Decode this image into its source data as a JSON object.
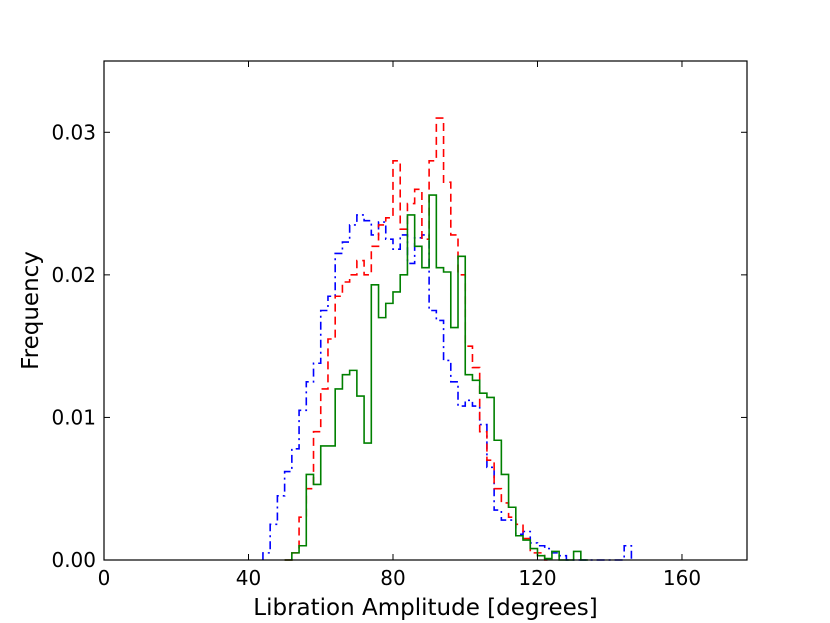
{
  "chart_data": {
    "type": "step",
    "title": "",
    "xlabel": "Libration Amplitude [degrees]",
    "ylabel": "Frequency",
    "xlim": [
      0,
      178
    ],
    "ylim": [
      0,
      0.035
    ],
    "xticks": [
      0,
      40,
      80,
      120,
      160
    ],
    "yticks": [
      0.0,
      0.01,
      0.02,
      0.03
    ],
    "xtick_labels": [
      "0",
      "40",
      "80",
      "120",
      "160"
    ],
    "ytick_labels": [
      "0.00",
      "0.01",
      "0.02",
      "0.03"
    ],
    "grid": false,
    "bin_width": 2,
    "series": [
      {
        "color": "#0000ff",
        "style": "dashdot",
        "bins": [
          [
            44,
            0.0005
          ],
          [
            46,
            0.0025
          ],
          [
            48,
            0.0045
          ],
          [
            50,
            0.0062
          ],
          [
            52,
            0.0078
          ],
          [
            54,
            0.0105
          ],
          [
            56,
            0.0125
          ],
          [
            58,
            0.0138
          ],
          [
            60,
            0.0175
          ],
          [
            62,
            0.0185
          ],
          [
            64,
            0.0215
          ],
          [
            66,
            0.0223
          ],
          [
            68,
            0.0235
          ],
          [
            70,
            0.0242
          ],
          [
            72,
            0.0238
          ],
          [
            74,
            0.0228
          ],
          [
            76,
            0.0237
          ],
          [
            78,
            0.0225
          ],
          [
            80,
            0.0218
          ],
          [
            82,
            0.0228
          ],
          [
            84,
            0.0208
          ],
          [
            86,
            0.0226
          ],
          [
            88,
            0.0228
          ],
          [
            90,
            0.0175
          ],
          [
            92,
            0.0168
          ],
          [
            94,
            0.014
          ],
          [
            96,
            0.0125
          ],
          [
            98,
            0.0108
          ],
          [
            100,
            0.0112
          ],
          [
            102,
            0.0108
          ],
          [
            104,
            0.0095
          ],
          [
            106,
            0.0065
          ],
          [
            108,
            0.0035
          ],
          [
            110,
            0.0028
          ],
          [
            112,
            0.0028
          ],
          [
            114,
            0.0018
          ],
          [
            116,
            0.002
          ],
          [
            118,
            0.0012
          ],
          [
            120,
            0.001
          ],
          [
            122,
            0.0008
          ],
          [
            124,
            0.0005
          ],
          [
            126,
            0.0003
          ],
          [
            128,
            0.0
          ],
          [
            130,
            0.0
          ],
          [
            132,
            0.0
          ],
          [
            134,
            0.0
          ],
          [
            136,
            0.0
          ],
          [
            138,
            0.0
          ],
          [
            140,
            0.0
          ],
          [
            142,
            0.0
          ],
          [
            144,
            0.001
          ]
        ]
      },
      {
        "color": "#ff0000",
        "style": "dashed",
        "bins": [
          [
            50,
            0.0
          ],
          [
            52,
            0.0005
          ],
          [
            54,
            0.003
          ],
          [
            56,
            0.005
          ],
          [
            58,
            0.009
          ],
          [
            60,
            0.012
          ],
          [
            62,
            0.0155
          ],
          [
            64,
            0.0185
          ],
          [
            66,
            0.0195
          ],
          [
            68,
            0.02
          ],
          [
            70,
            0.021
          ],
          [
            72,
            0.02
          ],
          [
            74,
            0.022
          ],
          [
            76,
            0.0235
          ],
          [
            78,
            0.024
          ],
          [
            80,
            0.028
          ],
          [
            82,
            0.0232
          ],
          [
            84,
            0.025
          ],
          [
            86,
            0.026
          ],
          [
            88,
            0.0225
          ],
          [
            90,
            0.028
          ],
          [
            92,
            0.031
          ],
          [
            94,
            0.0265
          ],
          [
            96,
            0.0228
          ],
          [
            98,
            0.02
          ],
          [
            100,
            0.015
          ],
          [
            102,
            0.0135
          ],
          [
            104,
            0.009
          ],
          [
            106,
            0.007
          ],
          [
            108,
            0.005
          ],
          [
            110,
            0.004
          ],
          [
            112,
            0.003
          ],
          [
            114,
            0.0025
          ],
          [
            116,
            0.0015
          ],
          [
            118,
            0.0005
          ],
          [
            120,
            0.0005
          ],
          [
            122,
            0.0
          ]
        ]
      },
      {
        "color": "#008000",
        "style": "solid",
        "bins": [
          [
            50,
            0.0
          ],
          [
            52,
            0.0005
          ],
          [
            54,
            0.001
          ],
          [
            56,
            0.006
          ],
          [
            58,
            0.0053
          ],
          [
            60,
            0.008
          ],
          [
            62,
            0.008
          ],
          [
            64,
            0.012
          ],
          [
            66,
            0.013
          ],
          [
            68,
            0.0133
          ],
          [
            70,
            0.0115
          ],
          [
            72,
            0.0082
          ],
          [
            74,
            0.0193
          ],
          [
            76,
            0.017
          ],
          [
            78,
            0.018
          ],
          [
            80,
            0.0188
          ],
          [
            82,
            0.02
          ],
          [
            84,
            0.0242
          ],
          [
            86,
            0.022
          ],
          [
            88,
            0.0205
          ],
          [
            90,
            0.0256
          ],
          [
            92,
            0.0205
          ],
          [
            94,
            0.0202
          ],
          [
            96,
            0.0163
          ],
          [
            98,
            0.0213
          ],
          [
            100,
            0.013
          ],
          [
            102,
            0.0126
          ],
          [
            104,
            0.0117
          ],
          [
            106,
            0.0114
          ],
          [
            108,
            0.0084
          ],
          [
            110,
            0.006
          ],
          [
            112,
            0.0037
          ],
          [
            114,
            0.0017
          ],
          [
            116,
            0.0014
          ],
          [
            118,
            0.0008
          ],
          [
            120,
            0.0003
          ],
          [
            122,
            0.0001
          ],
          [
            124,
            0.0006
          ],
          [
            126,
            0.0
          ],
          [
            128,
            0.0
          ],
          [
            130,
            0.0006
          ],
          [
            132,
            0.0
          ]
        ]
      }
    ]
  }
}
